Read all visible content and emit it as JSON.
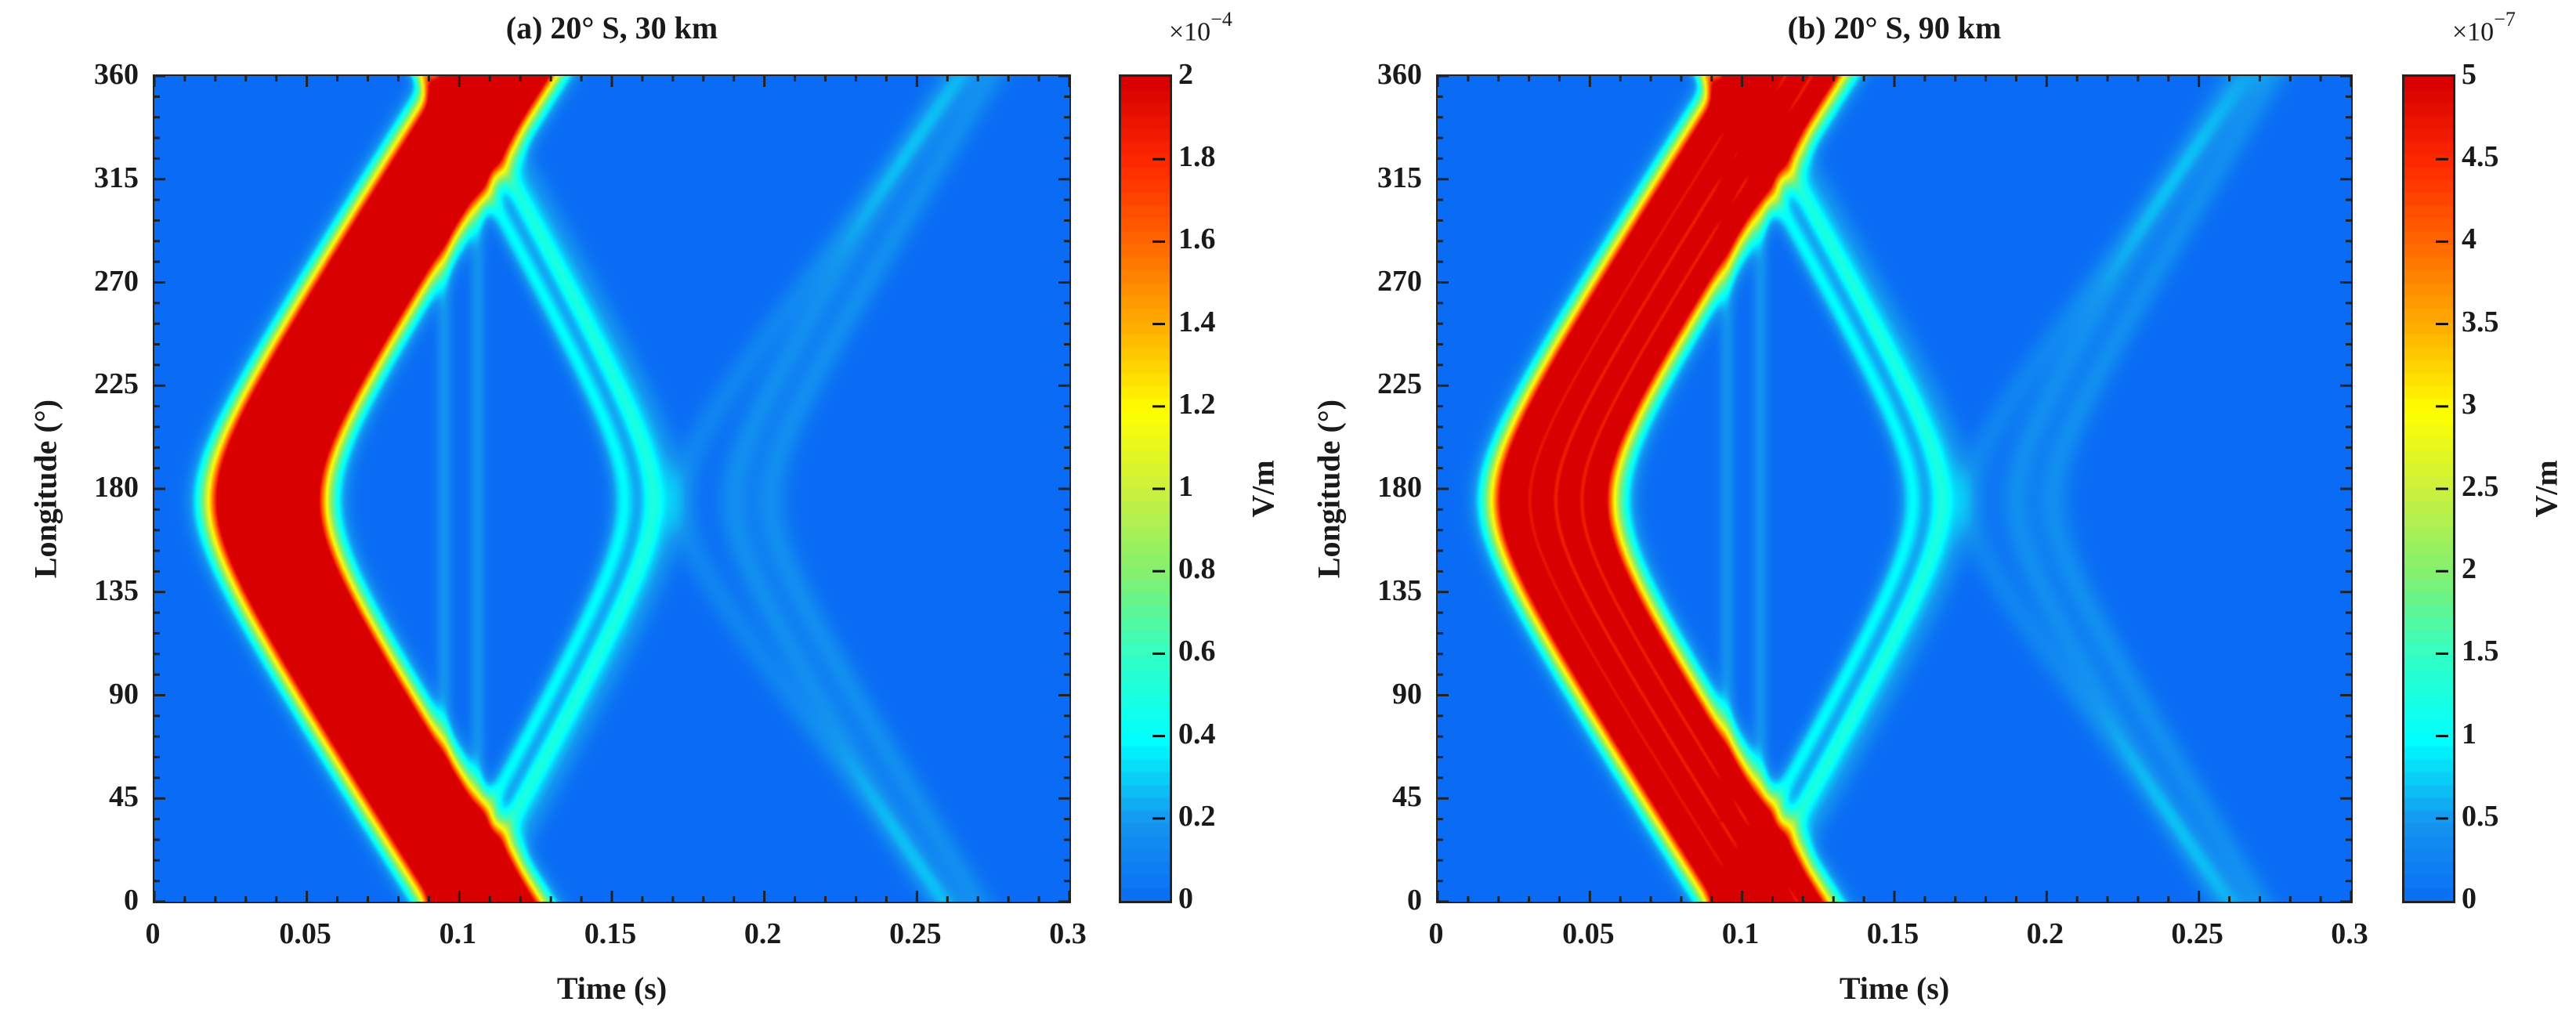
{
  "chart_data": [
    {
      "type": "heatmap",
      "title": "(a) 20° S, 30 km",
      "xlabel": "Time (s)",
      "ylabel": "Longitude (°)",
      "xlim": [
        0,
        0.3
      ],
      "ylim": [
        0,
        360
      ],
      "xticks": [
        "0",
        "0.05",
        "0.1",
        "0.15",
        "0.2",
        "0.25",
        "0.3"
      ],
      "xtick_values": [
        0,
        0.05,
        0.1,
        0.15,
        0.2,
        0.25,
        0.3
      ],
      "yticks": [
        "0",
        "45",
        "90",
        "135",
        "180",
        "225",
        "270",
        "315",
        "360"
      ],
      "ytick_values": [
        0,
        45,
        90,
        135,
        180,
        225,
        270,
        315,
        360
      ],
      "colorbar": {
        "label": "V/m",
        "multiplier_base": "×10",
        "multiplier_exp": "−4",
        "clim": [
          0,
          2
        ],
        "ticks": [
          "0",
          "0.2",
          "0.4",
          "0.6",
          "0.8",
          "1",
          "1.2",
          "1.4",
          "1.6",
          "1.8",
          "2"
        ],
        "tick_values": [
          0,
          0.2,
          0.4,
          0.6,
          0.8,
          1,
          1.2,
          1.4,
          1.6,
          1.8,
          2
        ],
        "colormap": "jet"
      },
      "wavefronts": {
        "direct_arrival_time_at_180": 0.022,
        "direct_arrival_time_at_0_360": 0.095,
        "direct_band_duration": 0.03,
        "direct_peak_value": 2.0,
        "reflected_time_at_180": 0.163,
        "reflected_time_at_0_360": 0.1,
        "reflected_peak_value": 0.5,
        "late_time_at_180": 0.19,
        "late_time_at_0_360": 0.26,
        "late_peak_value": 0.18,
        "vertical_lines_time": [
          0.095,
          0.106
        ],
        "stripe_separation": 0.5
      }
    },
    {
      "type": "heatmap",
      "title": "(b) 20° S, 90 km",
      "xlabel": "Time (s)",
      "ylabel": "Longitude (°)",
      "xlim": [
        0,
        0.3
      ],
      "ylim": [
        0,
        360
      ],
      "xticks": [
        "0",
        "0.05",
        "0.1",
        "0.15",
        "0.2",
        "0.25",
        "0.3"
      ],
      "xtick_values": [
        0,
        0.05,
        0.1,
        0.15,
        0.2,
        0.25,
        0.3
      ],
      "yticks": [
        "0",
        "45",
        "90",
        "135",
        "180",
        "225",
        "270",
        "315",
        "360"
      ],
      "ytick_values": [
        0,
        45,
        90,
        135,
        180,
        225,
        270,
        315,
        360
      ],
      "colorbar": {
        "label": "V/m",
        "multiplier_base": "×10",
        "multiplier_exp": "−7",
        "clim": [
          0,
          5
        ],
        "ticks": [
          "0",
          "0.5",
          "1",
          "1.5",
          "2",
          "2.5",
          "3",
          "3.5",
          "4",
          "4.5",
          "5"
        ],
        "tick_values": [
          0,
          0.5,
          1,
          1.5,
          2,
          2.5,
          3,
          3.5,
          4,
          4.5,
          5
        ],
        "colormap": "jet"
      },
      "wavefronts": {
        "direct_arrival_time_at_180": 0.022,
        "direct_arrival_time_at_0_360": 0.095,
        "direct_band_duration": 0.032,
        "direct_peak_value": 5.0,
        "reflected_time_at_180": 0.165,
        "reflected_time_at_0_360": 0.1,
        "reflected_peak_value": 1.25,
        "late_time_at_180": 0.19,
        "late_time_at_0_360": 0.26,
        "late_peak_value": 0.4,
        "vertical_lines_time": [
          0.095,
          0.106
        ],
        "stripe_separation": 1.0
      }
    }
  ]
}
